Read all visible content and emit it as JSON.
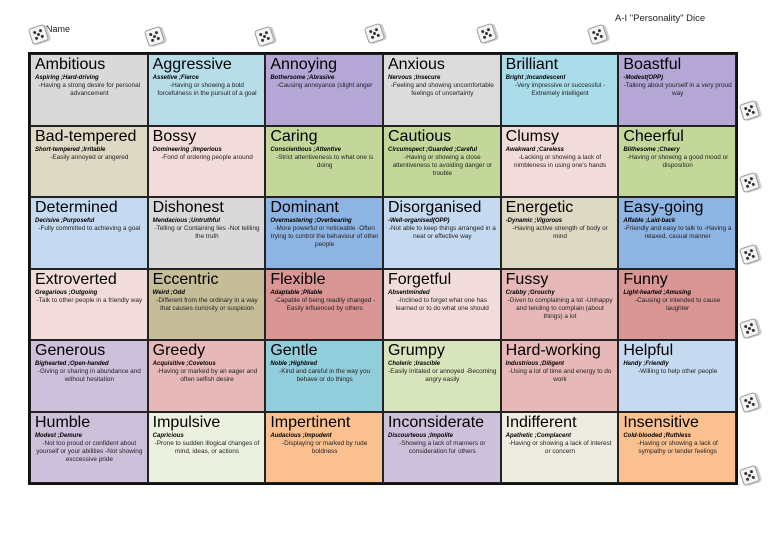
{
  "header": {
    "name_label": "Name",
    "title": "A-I \"Personality\" Dice"
  },
  "cards": [
    {
      "word": "Ambitious",
      "synonyms": "Aspiring ;Hard-driving",
      "definition": "-Having a strong desire for personal advancement",
      "color": "#d9d9d9"
    },
    {
      "word": "Aggressive",
      "synonyms": "Assetive ;Fierce",
      "definition": "-Having or showing a bold forcefulness in the pursuit of a goal",
      "color": "#b7dde8"
    },
    {
      "word": "Annoying",
      "synonyms": "Bothersome ;Abrasive",
      "definition": "-Causing annoyance (slight anger",
      "color": "#b4a7d6"
    },
    {
      "word": "Anxious",
      "synonyms": "Nervous ;Insecure",
      "definition": "-Feeling and showing uncomfortable feelings of uncertainty",
      "color": "#dcdcdc"
    },
    {
      "word": "Brilliant",
      "synonyms": "Bright ;Incandescent",
      "definition": "-Very impressive or successful -Extremely intelligent",
      "color": "#a9dce8"
    },
    {
      "word": "Boastful",
      "synonyms": "-Modest(OPP)",
      "definition": "-Talking about yourself in a very proud way",
      "color": "#b4a7d6"
    },
    {
      "word": "Bad-tempered",
      "synonyms": "Short-tempered ;Irritable",
      "definition": "-Easily annoyed or angered",
      "color": "#ddd9c4"
    },
    {
      "word": "Bossy",
      "synonyms": "Domineering ;Imperious",
      "definition": "-Fond of ordering people around",
      "color": "#f2dcdb"
    },
    {
      "word": "Caring",
      "synonyms": "Conscientious ;Attentive",
      "definition": "-Strict attentiveness to what one is doing",
      "color": "#c4d79b"
    },
    {
      "word": "Cautious",
      "synonyms": "Circumspect ;Guarded ;Careful",
      "definition": "-Having or showing a close attentiveness to avoiding danger or trouble",
      "color": "#c4d79b"
    },
    {
      "word": "Clumsy",
      "synonyms": "Awakward ;Careless",
      "definition": "-Lacking or showing a lack of nimbleness in using one's hands",
      "color": "#f2dcdb"
    },
    {
      "word": "Cheerful",
      "synonyms": "Blithesome ;Cheery",
      "definition": "-Having or showing a good mood or disposition",
      "color": "#c4d79b"
    },
    {
      "word": "Determined",
      "synonyms": "Decisive ;Purposeful",
      "definition": "-Fully committed to achieving a goal",
      "color": "#c5d9f1"
    },
    {
      "word": "Dishonest",
      "synonyms": "Mendacious ;Untruthful",
      "definition": "-Telling or Containing lies -Not telliing the truth",
      "color": "#d9d9d9"
    },
    {
      "word": "Dominant",
      "synonyms": "Overmastering ;Overbearing",
      "definition": "-More powerful or noticeable -Often trying to control the behaviour of other people",
      "color": "#8eb4e3"
    },
    {
      "word": "Disorganised",
      "synonyms": "-Well-organised(OPP)",
      "definition": "-Not able to keep things arranged in a neat or effective way",
      "color": "#c5d9f1"
    },
    {
      "word": "Energetic",
      "synonyms": "-Dynamic ;Vigorous",
      "definition": "-Having active strength of body or mind",
      "color": "#ddd9c4"
    },
    {
      "word": "Easy-going",
      "synonyms": "Affable ;Laid-back",
      "definition": "-Friendly and easy to talk to -Having a relaxed, casual manner",
      "color": "#8eb4e3"
    },
    {
      "word": "Extroverted",
      "synonyms": "Gregarious ;Outgoing",
      "definition": "-Talk to other people in a friendly way",
      "color": "#f2dcdb"
    },
    {
      "word": "Eccentric",
      "synonyms": "Weird ;Odd",
      "definition": "-Different from the ordinary in a way that causes curiosity or suspicion",
      "color": "#c4bd97"
    },
    {
      "word": "Flexible",
      "synonyms": "Adaptable ;Pliable",
      "definition": "-Capable of being readily changed -Easily influenced by others",
      "color": "#da9694"
    },
    {
      "word": "Forgetful",
      "synonyms": "Absentminded",
      "definition": "-Inclined to forget what one has learned or to do what one should",
      "color": "#f2dcdb"
    },
    {
      "word": "Fussy",
      "synonyms": "Crabby ;Grouchy",
      "definition": "-Given to complaining a lot -Unhappy and tending to complain (about things) a lot",
      "color": "#e6b9b8"
    },
    {
      "word": "Funny",
      "synonyms": "Light-hearted ;Amusing",
      "definition": "-Causing or intended to cause laughter",
      "color": "#da9694"
    },
    {
      "word": "Generous",
      "synonyms": "Bighearted ;Open-handed",
      "definition": "-Giving or sharing in abundance and without hesitation",
      "color": "#ccc0da"
    },
    {
      "word": "Greedy",
      "synonyms": "Acquisitive ;Covetous",
      "definition": "-Having or marked by an eager and often selfish desire",
      "color": "#e6b9b8"
    },
    {
      "word": "Gentle",
      "synonyms": "Noble ;Highbred",
      "definition": "-Kind and careful in the way you behave or do things",
      "color": "#92cddc"
    },
    {
      "word": "Grumpy",
      "synonyms": "Choleric ;Irascible",
      "definition": "-Easily irritated or annoyed -Becoming angry easily",
      "color": "#d8e4bc"
    },
    {
      "word": "Hard-working",
      "synonyms": "Industrious ;Diligent",
      "definition": "-Using a lot of time and energy to do work",
      "color": "#e6b9b8"
    },
    {
      "word": "Helpful",
      "synonyms": "Handy ;Friendly",
      "definition": "-Willing to help other people",
      "color": "#c5d9f1"
    },
    {
      "word": "Humble",
      "synonyms": "Modest ;Demure",
      "definition": "-Not too proud or confident about yourself or your abilities -Not showing exccessive pride",
      "color": "#ccc0da"
    },
    {
      "word": "Impulsive",
      "synonyms": "Capricious",
      "definition": "-Prone to sudden illogical changes of mind, ideas, or actions",
      "color": "#ebf1de"
    },
    {
      "word": "Impertinent",
      "synonyms": "Audacious ;Impudent",
      "definition": "-Displaying or marked by rude boldness",
      "color": "#fac090"
    },
    {
      "word": "Inconsiderate",
      "synonyms": "Discourteous ;Impolite",
      "definition": "-Showing a lack of manners or consideration for others",
      "color": "#ccc0da"
    },
    {
      "word": "Indifferent",
      "synonyms": "Apathetic ;Complacent",
      "definition": "-Having or showing a lack of interest or concern",
      "color": "#eeece1"
    },
    {
      "word": "Insensitive",
      "synonyms": "Cold-blooded ;Ruthless",
      "definition": "-Having or showing a lack of sympathy or tender feelings",
      "color": "#fac090"
    }
  ]
}
